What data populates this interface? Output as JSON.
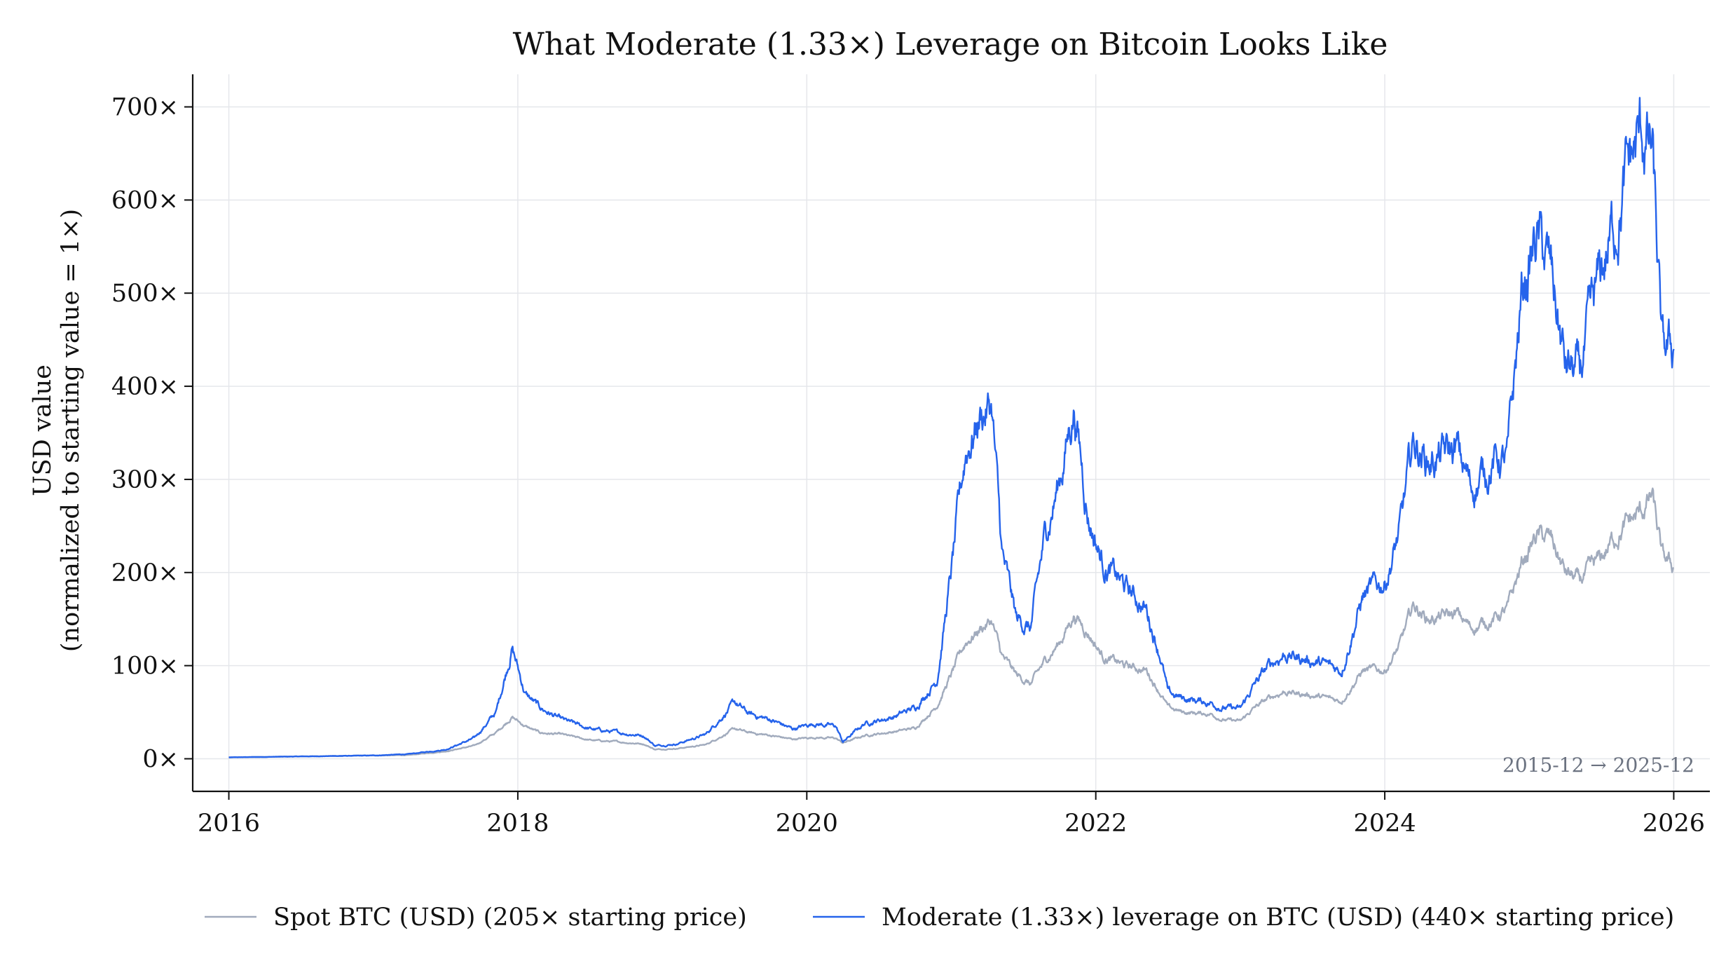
{
  "chart_data": {
    "type": "line",
    "title": "What Moderate (1.33×) Leverage on Bitcoin Looks Like",
    "ylabel_line1": "USD value",
    "ylabel_line2": "(normalized to starting value = 1×)",
    "xlim": [
      2015.75,
      2026.25
    ],
    "ylim": [
      -35,
      735
    ],
    "x_ticks": [
      2016,
      2018,
      2020,
      2022,
      2024,
      2026
    ],
    "x_tick_labels": [
      "2016",
      "2018",
      "2020",
      "2022",
      "2024",
      "2026"
    ],
    "y_ticks": [
      0,
      100,
      200,
      300,
      400,
      500,
      600,
      700
    ],
    "y_tick_labels": [
      "0×",
      "100×",
      "200×",
      "300×",
      "400×",
      "500×",
      "600×",
      "700×"
    ],
    "grid": true,
    "legend_position": "bottom",
    "annotation": "2015-12 → 2025-12",
    "colors": {
      "spot": "#a1abbd",
      "levered": "#2563eb"
    },
    "series": [
      {
        "name": "Spot BTC (USD)  (205× starting price)",
        "color": "#a1abbd",
        "x": [
          2016.0,
          2016.5,
          2017.0,
          2017.25,
          2017.5,
          2017.7,
          2017.85,
          2017.96,
          2018.05,
          2018.15,
          2018.3,
          2018.5,
          2018.7,
          2018.87,
          2018.95,
          2019.1,
          2019.3,
          2019.5,
          2019.6,
          2019.75,
          2019.9,
          2020.05,
          2020.2,
          2020.25,
          2020.4,
          2020.6,
          2020.75,
          2020.9,
          2021.0,
          2021.1,
          2021.2,
          2021.28,
          2021.35,
          2021.45,
          2021.55,
          2021.65,
          2021.75,
          2021.85,
          2021.95,
          2022.05,
          2022.2,
          2022.35,
          2022.45,
          2022.5,
          2022.6,
          2022.8,
          2022.88,
          2023.0,
          2023.1,
          2023.2,
          2023.3,
          2023.5,
          2023.7,
          2023.85,
          2024.0,
          2024.1,
          2024.2,
          2024.3,
          2024.5,
          2024.6,
          2024.75,
          2024.85,
          2024.95,
          2025.05,
          2025.15,
          2025.25,
          2025.35,
          2025.5,
          2025.6,
          2025.7,
          2025.78,
          2025.85,
          2025.92,
          2026.0
        ],
        "y": [
          1.5,
          2.5,
          3.5,
          4,
          8,
          14,
          28,
          45,
          35,
          28,
          26,
          20,
          18,
          16,
          10,
          11,
          15,
          32,
          28,
          25,
          21,
          23,
          22,
          17,
          25,
          29,
          33,
          57,
          90,
          125,
          140,
          148,
          110,
          90,
          80,
          105,
          125,
          155,
          135,
          110,
          100,
          95,
          70,
          55,
          50,
          48,
          42,
          40,
          55,
          65,
          72,
          68,
          62,
          95,
          95,
          120,
          165,
          150,
          155,
          140,
          150,
          160,
          210,
          240,
          235,
          200,
          190,
          215,
          240,
          255,
          265,
          282,
          215,
          205
        ]
      },
      {
        "name": "Moderate (1.33×) leverage on BTC (USD)  (440× starting price)",
        "color": "#2563eb",
        "x": [
          2016.0,
          2016.5,
          2017.0,
          2017.25,
          2017.5,
          2017.7,
          2017.85,
          2017.96,
          2018.05,
          2018.15,
          2018.3,
          2018.5,
          2018.7,
          2018.87,
          2018.95,
          2019.1,
          2019.3,
          2019.5,
          2019.6,
          2019.75,
          2019.9,
          2020.05,
          2020.2,
          2020.25,
          2020.4,
          2020.6,
          2020.75,
          2020.9,
          2021.0,
          2021.1,
          2021.2,
          2021.28,
          2021.35,
          2021.45,
          2021.55,
          2021.65,
          2021.75,
          2021.85,
          2021.95,
          2022.05,
          2022.2,
          2022.35,
          2022.45,
          2022.5,
          2022.6,
          2022.8,
          2022.88,
          2023.0,
          2023.1,
          2023.2,
          2023.3,
          2023.5,
          2023.7,
          2023.85,
          2024.0,
          2024.1,
          2024.2,
          2024.3,
          2024.5,
          2024.6,
          2024.75,
          2024.85,
          2024.95,
          2025.05,
          2025.15,
          2025.25,
          2025.35,
          2025.5,
          2025.6,
          2025.7,
          2025.78,
          2025.85,
          2025.92,
          2026.0
        ],
        "y": [
          1.5,
          2.5,
          3.5,
          5,
          10,
          22,
          50,
          120,
          70,
          55,
          42,
          32,
          28,
          25,
          14,
          16,
          26,
          60,
          48,
          42,
          32,
          38,
          35,
          18,
          38,
          45,
          55,
          85,
          200,
          330,
          370,
          380,
          220,
          150,
          140,
          240,
          300,
          380,
          260,
          210,
          185,
          160,
          110,
          70,
          65,
          60,
          55,
          53,
          80,
          100,
          112,
          105,
          95,
          175,
          190,
          240,
          340,
          320,
          330,
          290,
          320,
          320,
          500,
          560,
          520,
          420,
          410,
          520,
          580,
          640,
          670,
          650,
          430,
          440
        ]
      }
    ]
  }
}
